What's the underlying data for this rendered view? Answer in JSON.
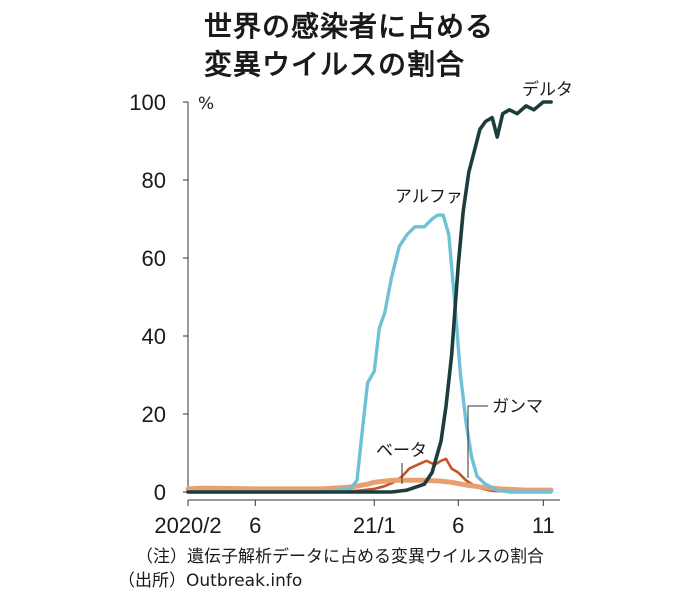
{
  "title_lines": [
    "世界の感染者に占める",
    "変異ウイルスの割合"
  ],
  "note": "（注）遺伝子解析データに占める変異ウイルスの割合",
  "source": "（出所）Outbreak.info",
  "chart_data": {
    "type": "line",
    "title": "世界の感染者に占める変異ウイルスの割合",
    "ylabel": "%",
    "ylim": [
      0,
      100
    ],
    "yticks": [
      0,
      20,
      40,
      60,
      80,
      100
    ],
    "xlim": [
      "2020-02-01",
      "2021-12-01"
    ],
    "xticks": [
      {
        "date": "2020-02-01",
        "label": "2020/2"
      },
      {
        "date": "2020-06-01",
        "label": "6"
      },
      {
        "date": "2021-01-01",
        "label": "21/1"
      },
      {
        "date": "2021-06-01",
        "label": "6"
      },
      {
        "date": "2021-11-01",
        "label": "11"
      }
    ],
    "grid": false,
    "series": [
      {
        "name": "ガンマ",
        "color": "#c4552b",
        "x": [
          "2020-02-01",
          "2020-06-01",
          "2020-10-01",
          "2020-12-01",
          "2021-01-01",
          "2021-01-20",
          "2021-02-05",
          "2021-02-20",
          "2021-03-05",
          "2021-03-20",
          "2021-04-05",
          "2021-04-20",
          "2021-05-01",
          "2021-05-10",
          "2021-05-20",
          "2021-06-01",
          "2021-06-15",
          "2021-07-01",
          "2021-07-15",
          "2021-08-01",
          "2021-09-01",
          "2021-11-01",
          "2021-11-15"
        ],
        "y": [
          0,
          0,
          0,
          0.3,
          0.8,
          1.5,
          2.5,
          4,
          6,
          7,
          8,
          7,
          8,
          8.5,
          6,
          5,
          3,
          1.5,
          0.8,
          0.3,
          0.1,
          0,
          0
        ]
      },
      {
        "name": "ベータ",
        "color": "#e8a070",
        "x": [
          "2020-02-01",
          "2020-03-01",
          "2020-06-01",
          "2020-10-01",
          "2020-11-15",
          "2020-12-01",
          "2020-12-20",
          "2021-01-01",
          "2021-01-20",
          "2021-02-05",
          "2021-03-01",
          "2021-04-01",
          "2021-05-01",
          "2021-05-20",
          "2021-06-15",
          "2021-07-15",
          "2021-08-15",
          "2021-10-01",
          "2021-11-15"
        ],
        "y": [
          0.8,
          1,
          0.8,
          0.8,
          1.2,
          1.5,
          2,
          2.5,
          2.8,
          3,
          3,
          3,
          2.8,
          2.5,
          1.8,
          1.2,
          0.8,
          0.5,
          0.5
        ]
      },
      {
        "name": "アルファ",
        "color": "#6ec1d6",
        "x": [
          "2020-02-01",
          "2020-10-01",
          "2020-11-01",
          "2020-11-20",
          "2020-12-01",
          "2020-12-10",
          "2020-12-20",
          "2021-01-01",
          "2021-01-10",
          "2021-01-20",
          "2021-02-01",
          "2021-02-15",
          "2021-03-01",
          "2021-03-15",
          "2021-04-01",
          "2021-04-15",
          "2021-04-25",
          "2021-05-05",
          "2021-05-15",
          "2021-05-25",
          "2021-06-05",
          "2021-06-15",
          "2021-06-25",
          "2021-07-05",
          "2021-07-20",
          "2021-08-10",
          "2021-09-01",
          "2021-11-15"
        ],
        "y": [
          0,
          0,
          0.5,
          1,
          3,
          15,
          28,
          31,
          42,
          46,
          55,
          63,
          66,
          68,
          68,
          70,
          71,
          71,
          66,
          50,
          30,
          18,
          9,
          4,
          2,
          0.5,
          0,
          0
        ]
      },
      {
        "name": "デルタ",
        "color": "#1d3d3d",
        "x": [
          "2020-02-01",
          "2021-02-01",
          "2021-03-01",
          "2021-04-01",
          "2021-04-15",
          "2021-05-01",
          "2021-05-10",
          "2021-05-20",
          "2021-06-01",
          "2021-06-10",
          "2021-06-20",
          "2021-07-01",
          "2021-07-10",
          "2021-07-20",
          "2021-08-01",
          "2021-08-10",
          "2021-08-20",
          "2021-09-01",
          "2021-09-15",
          "2021-10-01",
          "2021-10-15",
          "2021-11-01",
          "2021-11-15"
        ],
        "y": [
          0,
          0,
          0.5,
          2,
          5,
          13,
          22,
          35,
          58,
          72,
          82,
          88,
          93,
          95,
          96,
          91,
          97,
          98,
          97,
          99,
          98,
          100,
          100
        ]
      }
    ],
    "annotations": [
      {
        "text": "デルタ",
        "series": "デルタ"
      },
      {
        "text": "アルファ",
        "series": "アルファ"
      },
      {
        "text": "ガンマ",
        "series": "ガンマ"
      },
      {
        "text": "ベータ",
        "series": "ベータ"
      }
    ]
  }
}
